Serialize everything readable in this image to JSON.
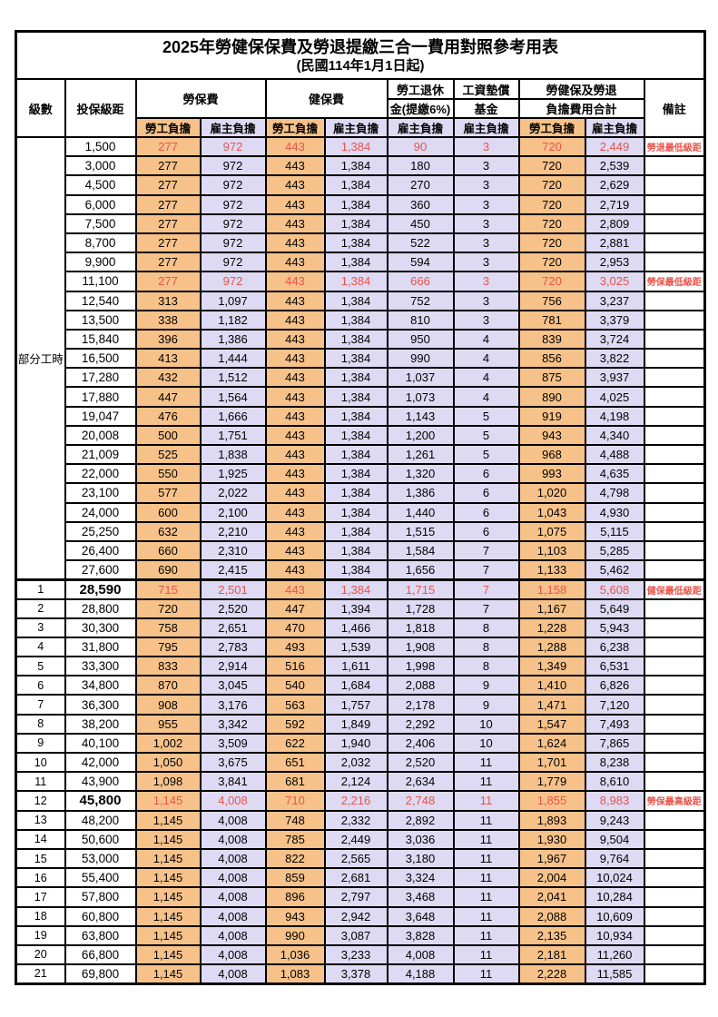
{
  "title": "2025年勞健保保費及勞退提繳三合一費用對照參考用表",
  "subtitle": "(民國114年1月1日起)",
  "colors": {
    "worker_fill": "#F7C289",
    "employer_fill": "#DEDAF3",
    "highlight_text": "#E8534A",
    "border": "#000000"
  },
  "header": {
    "level": "級數",
    "bracket": "投保級距",
    "labor_insurance": "勞保費",
    "health_insurance": "健保費",
    "pension_line1": "勞工退休",
    "pension_line2": "金(提繳6%)",
    "wage_fund_line1": "工資墊償",
    "wage_fund_line2": "基金",
    "total_line1": "勞健保及勞退",
    "total_line2": "負擔費用合計",
    "worker": "勞工負擔",
    "employer": "雇主負擔",
    "remark": "備註"
  },
  "part_time_label": "部分工時",
  "part_time_row_count": 23,
  "rows": [
    {
      "level": "",
      "bracket": "1,500",
      "li_worker": "277",
      "li_employer": "972",
      "hi_worker": "443",
      "hi_employer": "1,384",
      "pension": "90",
      "fund": "3",
      "total_worker": "720",
      "total_employer": "2,449",
      "remark": "勞退最低級距",
      "highlight": true,
      "bold": false,
      "thick_top": false
    },
    {
      "level": "",
      "bracket": "3,000",
      "li_worker": "277",
      "li_employer": "972",
      "hi_worker": "443",
      "hi_employer": "1,384",
      "pension": "180",
      "fund": "3",
      "total_worker": "720",
      "total_employer": "2,539",
      "remark": "",
      "highlight": false,
      "bold": false,
      "thick_top": false
    },
    {
      "level": "",
      "bracket": "4,500",
      "li_worker": "277",
      "li_employer": "972",
      "hi_worker": "443",
      "hi_employer": "1,384",
      "pension": "270",
      "fund": "3",
      "total_worker": "720",
      "total_employer": "2,629",
      "remark": "",
      "highlight": false,
      "bold": false,
      "thick_top": false
    },
    {
      "level": "",
      "bracket": "6,000",
      "li_worker": "277",
      "li_employer": "972",
      "hi_worker": "443",
      "hi_employer": "1,384",
      "pension": "360",
      "fund": "3",
      "total_worker": "720",
      "total_employer": "2,719",
      "remark": "",
      "highlight": false,
      "bold": false,
      "thick_top": false
    },
    {
      "level": "",
      "bracket": "7,500",
      "li_worker": "277",
      "li_employer": "972",
      "hi_worker": "443",
      "hi_employer": "1,384",
      "pension": "450",
      "fund": "3",
      "total_worker": "720",
      "total_employer": "2,809",
      "remark": "",
      "highlight": false,
      "bold": false,
      "thick_top": false
    },
    {
      "level": "",
      "bracket": "8,700",
      "li_worker": "277",
      "li_employer": "972",
      "hi_worker": "443",
      "hi_employer": "1,384",
      "pension": "522",
      "fund": "3",
      "total_worker": "720",
      "total_employer": "2,881",
      "remark": "",
      "highlight": false,
      "bold": false,
      "thick_top": false
    },
    {
      "level": "",
      "bracket": "9,900",
      "li_worker": "277",
      "li_employer": "972",
      "hi_worker": "443",
      "hi_employer": "1,384",
      "pension": "594",
      "fund": "3",
      "total_worker": "720",
      "total_employer": "2,953",
      "remark": "",
      "highlight": false,
      "bold": false,
      "thick_top": false
    },
    {
      "level": "",
      "bracket": "11,100",
      "li_worker": "277",
      "li_employer": "972",
      "hi_worker": "443",
      "hi_employer": "1,384",
      "pension": "666",
      "fund": "3",
      "total_worker": "720",
      "total_employer": "3,025",
      "remark": "勞保最低級距",
      "highlight": true,
      "bold": false,
      "thick_top": false
    },
    {
      "level": "",
      "bracket": "12,540",
      "li_worker": "313",
      "li_employer": "1,097",
      "hi_worker": "443",
      "hi_employer": "1,384",
      "pension": "752",
      "fund": "3",
      "total_worker": "756",
      "total_employer": "3,237",
      "remark": "",
      "highlight": false,
      "bold": false,
      "thick_top": false
    },
    {
      "level": "",
      "bracket": "13,500",
      "li_worker": "338",
      "li_employer": "1,182",
      "hi_worker": "443",
      "hi_employer": "1,384",
      "pension": "810",
      "fund": "3",
      "total_worker": "781",
      "total_employer": "3,379",
      "remark": "",
      "highlight": false,
      "bold": false,
      "thick_top": false
    },
    {
      "level": "",
      "bracket": "15,840",
      "li_worker": "396",
      "li_employer": "1,386",
      "hi_worker": "443",
      "hi_employer": "1,384",
      "pension": "950",
      "fund": "4",
      "total_worker": "839",
      "total_employer": "3,724",
      "remark": "",
      "highlight": false,
      "bold": false,
      "thick_top": false
    },
    {
      "level": "",
      "bracket": "16,500",
      "li_worker": "413",
      "li_employer": "1,444",
      "hi_worker": "443",
      "hi_employer": "1,384",
      "pension": "990",
      "fund": "4",
      "total_worker": "856",
      "total_employer": "3,822",
      "remark": "",
      "highlight": false,
      "bold": false,
      "thick_top": false
    },
    {
      "level": "",
      "bracket": "17,280",
      "li_worker": "432",
      "li_employer": "1,512",
      "hi_worker": "443",
      "hi_employer": "1,384",
      "pension": "1,037",
      "fund": "4",
      "total_worker": "875",
      "total_employer": "3,937",
      "remark": "",
      "highlight": false,
      "bold": false,
      "thick_top": false
    },
    {
      "level": "",
      "bracket": "17,880",
      "li_worker": "447",
      "li_employer": "1,564",
      "hi_worker": "443",
      "hi_employer": "1,384",
      "pension": "1,073",
      "fund": "4",
      "total_worker": "890",
      "total_employer": "4,025",
      "remark": "",
      "highlight": false,
      "bold": false,
      "thick_top": false
    },
    {
      "level": "",
      "bracket": "19,047",
      "li_worker": "476",
      "li_employer": "1,666",
      "hi_worker": "443",
      "hi_employer": "1,384",
      "pension": "1,143",
      "fund": "5",
      "total_worker": "919",
      "total_employer": "4,198",
      "remark": "",
      "highlight": false,
      "bold": false,
      "thick_top": false
    },
    {
      "level": "",
      "bracket": "20,008",
      "li_worker": "500",
      "li_employer": "1,751",
      "hi_worker": "443",
      "hi_employer": "1,384",
      "pension": "1,200",
      "fund": "5",
      "total_worker": "943",
      "total_employer": "4,340",
      "remark": "",
      "highlight": false,
      "bold": false,
      "thick_top": false
    },
    {
      "level": "",
      "bracket": "21,009",
      "li_worker": "525",
      "li_employer": "1,838",
      "hi_worker": "443",
      "hi_employer": "1,384",
      "pension": "1,261",
      "fund": "5",
      "total_worker": "968",
      "total_employer": "4,488",
      "remark": "",
      "highlight": false,
      "bold": false,
      "thick_top": false
    },
    {
      "level": "",
      "bracket": "22,000",
      "li_worker": "550",
      "li_employer": "1,925",
      "hi_worker": "443",
      "hi_employer": "1,384",
      "pension": "1,320",
      "fund": "6",
      "total_worker": "993",
      "total_employer": "4,635",
      "remark": "",
      "highlight": false,
      "bold": false,
      "thick_top": false
    },
    {
      "level": "",
      "bracket": "23,100",
      "li_worker": "577",
      "li_employer": "2,022",
      "hi_worker": "443",
      "hi_employer": "1,384",
      "pension": "1,386",
      "fund": "6",
      "total_worker": "1,020",
      "total_employer": "4,798",
      "remark": "",
      "highlight": false,
      "bold": false,
      "thick_top": false
    },
    {
      "level": "",
      "bracket": "24,000",
      "li_worker": "600",
      "li_employer": "2,100",
      "hi_worker": "443",
      "hi_employer": "1,384",
      "pension": "1,440",
      "fund": "6",
      "total_worker": "1,043",
      "total_employer": "4,930",
      "remark": "",
      "highlight": false,
      "bold": false,
      "thick_top": false
    },
    {
      "level": "",
      "bracket": "25,250",
      "li_worker": "632",
      "li_employer": "2,210",
      "hi_worker": "443",
      "hi_employer": "1,384",
      "pension": "1,515",
      "fund": "6",
      "total_worker": "1,075",
      "total_employer": "5,115",
      "remark": "",
      "highlight": false,
      "bold": false,
      "thick_top": false
    },
    {
      "level": "",
      "bracket": "26,400",
      "li_worker": "660",
      "li_employer": "2,310",
      "hi_worker": "443",
      "hi_employer": "1,384",
      "pension": "1,584",
      "fund": "7",
      "total_worker": "1,103",
      "total_employer": "5,285",
      "remark": "",
      "highlight": false,
      "bold": false,
      "thick_top": false
    },
    {
      "level": "",
      "bracket": "27,600",
      "li_worker": "690",
      "li_employer": "2,415",
      "hi_worker": "443",
      "hi_employer": "1,384",
      "pension": "1,656",
      "fund": "7",
      "total_worker": "1,133",
      "total_employer": "5,462",
      "remark": "",
      "highlight": false,
      "bold": false,
      "thick_top": false
    },
    {
      "level": "1",
      "bracket": "28,590",
      "li_worker": "715",
      "li_employer": "2,501",
      "hi_worker": "443",
      "hi_employer": "1,384",
      "pension": "1,715",
      "fund": "7",
      "total_worker": "1,158",
      "total_employer": "5,608",
      "remark": "健保最低級距",
      "highlight": true,
      "bold": true,
      "thick_top": true
    },
    {
      "level": "2",
      "bracket": "28,800",
      "li_worker": "720",
      "li_employer": "2,520",
      "hi_worker": "447",
      "hi_employer": "1,394",
      "pension": "1,728",
      "fund": "7",
      "total_worker": "1,167",
      "total_employer": "5,649",
      "remark": "",
      "highlight": false,
      "bold": false,
      "thick_top": false
    },
    {
      "level": "3",
      "bracket": "30,300",
      "li_worker": "758",
      "li_employer": "2,651",
      "hi_worker": "470",
      "hi_employer": "1,466",
      "pension": "1,818",
      "fund": "8",
      "total_worker": "1,228",
      "total_employer": "5,943",
      "remark": "",
      "highlight": false,
      "bold": false,
      "thick_top": false
    },
    {
      "level": "4",
      "bracket": "31,800",
      "li_worker": "795",
      "li_employer": "2,783",
      "hi_worker": "493",
      "hi_employer": "1,539",
      "pension": "1,908",
      "fund": "8",
      "total_worker": "1,288",
      "total_employer": "6,238",
      "remark": "",
      "highlight": false,
      "bold": false,
      "thick_top": false
    },
    {
      "level": "5",
      "bracket": "33,300",
      "li_worker": "833",
      "li_employer": "2,914",
      "hi_worker": "516",
      "hi_employer": "1,611",
      "pension": "1,998",
      "fund": "8",
      "total_worker": "1,349",
      "total_employer": "6,531",
      "remark": "",
      "highlight": false,
      "bold": false,
      "thick_top": false
    },
    {
      "level": "6",
      "bracket": "34,800",
      "li_worker": "870",
      "li_employer": "3,045",
      "hi_worker": "540",
      "hi_employer": "1,684",
      "pension": "2,088",
      "fund": "9",
      "total_worker": "1,410",
      "total_employer": "6,826",
      "remark": "",
      "highlight": false,
      "bold": false,
      "thick_top": false
    },
    {
      "level": "7",
      "bracket": "36,300",
      "li_worker": "908",
      "li_employer": "3,176",
      "hi_worker": "563",
      "hi_employer": "1,757",
      "pension": "2,178",
      "fund": "9",
      "total_worker": "1,471",
      "total_employer": "7,120",
      "remark": "",
      "highlight": false,
      "bold": false,
      "thick_top": false
    },
    {
      "level": "8",
      "bracket": "38,200",
      "li_worker": "955",
      "li_employer": "3,342",
      "hi_worker": "592",
      "hi_employer": "1,849",
      "pension": "2,292",
      "fund": "10",
      "total_worker": "1,547",
      "total_employer": "7,493",
      "remark": "",
      "highlight": false,
      "bold": false,
      "thick_top": false
    },
    {
      "level": "9",
      "bracket": "40,100",
      "li_worker": "1,002",
      "li_employer": "3,509",
      "hi_worker": "622",
      "hi_employer": "1,940",
      "pension": "2,406",
      "fund": "10",
      "total_worker": "1,624",
      "total_employer": "7,865",
      "remark": "",
      "highlight": false,
      "bold": false,
      "thick_top": false
    },
    {
      "level": "10",
      "bracket": "42,000",
      "li_worker": "1,050",
      "li_employer": "3,675",
      "hi_worker": "651",
      "hi_employer": "2,032",
      "pension": "2,520",
      "fund": "11",
      "total_worker": "1,701",
      "total_employer": "8,238",
      "remark": "",
      "highlight": false,
      "bold": false,
      "thick_top": false
    },
    {
      "level": "11",
      "bracket": "43,900",
      "li_worker": "1,098",
      "li_employer": "3,841",
      "hi_worker": "681",
      "hi_employer": "2,124",
      "pension": "2,634",
      "fund": "11",
      "total_worker": "1,779",
      "total_employer": "8,610",
      "remark": "",
      "highlight": false,
      "bold": false,
      "thick_top": false
    },
    {
      "level": "12",
      "bracket": "45,800",
      "li_worker": "1,145",
      "li_employer": "4,008",
      "hi_worker": "710",
      "hi_employer": "2,216",
      "pension": "2,748",
      "fund": "11",
      "total_worker": "1,855",
      "total_employer": "8,983",
      "remark": "勞保最高級距",
      "highlight": true,
      "bold": true,
      "thick_top": false
    },
    {
      "level": "13",
      "bracket": "48,200",
      "li_worker": "1,145",
      "li_employer": "4,008",
      "hi_worker": "748",
      "hi_employer": "2,332",
      "pension": "2,892",
      "fund": "11",
      "total_worker": "1,893",
      "total_employer": "9,243",
      "remark": "",
      "highlight": false,
      "bold": false,
      "thick_top": false
    },
    {
      "level": "14",
      "bracket": "50,600",
      "li_worker": "1,145",
      "li_employer": "4,008",
      "hi_worker": "785",
      "hi_employer": "2,449",
      "pension": "3,036",
      "fund": "11",
      "total_worker": "1,930",
      "total_employer": "9,504",
      "remark": "",
      "highlight": false,
      "bold": false,
      "thick_top": false
    },
    {
      "level": "15",
      "bracket": "53,000",
      "li_worker": "1,145",
      "li_employer": "4,008",
      "hi_worker": "822",
      "hi_employer": "2,565",
      "pension": "3,180",
      "fund": "11",
      "total_worker": "1,967",
      "total_employer": "9,764",
      "remark": "",
      "highlight": false,
      "bold": false,
      "thick_top": false
    },
    {
      "level": "16",
      "bracket": "55,400",
      "li_worker": "1,145",
      "li_employer": "4,008",
      "hi_worker": "859",
      "hi_employer": "2,681",
      "pension": "3,324",
      "fund": "11",
      "total_worker": "2,004",
      "total_employer": "10,024",
      "remark": "",
      "highlight": false,
      "bold": false,
      "thick_top": false
    },
    {
      "level": "17",
      "bracket": "57,800",
      "li_worker": "1,145",
      "li_employer": "4,008",
      "hi_worker": "896",
      "hi_employer": "2,797",
      "pension": "3,468",
      "fund": "11",
      "total_worker": "2,041",
      "total_employer": "10,284",
      "remark": "",
      "highlight": false,
      "bold": false,
      "thick_top": false
    },
    {
      "level": "18",
      "bracket": "60,800",
      "li_worker": "1,145",
      "li_employer": "4,008",
      "hi_worker": "943",
      "hi_employer": "2,942",
      "pension": "3,648",
      "fund": "11",
      "total_worker": "2,088",
      "total_employer": "10,609",
      "remark": "",
      "highlight": false,
      "bold": false,
      "thick_top": false
    },
    {
      "level": "19",
      "bracket": "63,800",
      "li_worker": "1,145",
      "li_employer": "4,008",
      "hi_worker": "990",
      "hi_employer": "3,087",
      "pension": "3,828",
      "fund": "11",
      "total_worker": "2,135",
      "total_employer": "10,934",
      "remark": "",
      "highlight": false,
      "bold": false,
      "thick_top": false
    },
    {
      "level": "20",
      "bracket": "66,800",
      "li_worker": "1,145",
      "li_employer": "4,008",
      "hi_worker": "1,036",
      "hi_employer": "3,233",
      "pension": "4,008",
      "fund": "11",
      "total_worker": "2,181",
      "total_employer": "11,260",
      "remark": "",
      "highlight": false,
      "bold": false,
      "thick_top": false
    },
    {
      "level": "21",
      "bracket": "69,800",
      "li_worker": "1,145",
      "li_employer": "4,008",
      "hi_worker": "1,083",
      "hi_employer": "3,378",
      "pension": "4,188",
      "fund": "11",
      "total_worker": "2,228",
      "total_employer": "11,585",
      "remark": "",
      "highlight": false,
      "bold": false,
      "thick_top": false
    }
  ]
}
